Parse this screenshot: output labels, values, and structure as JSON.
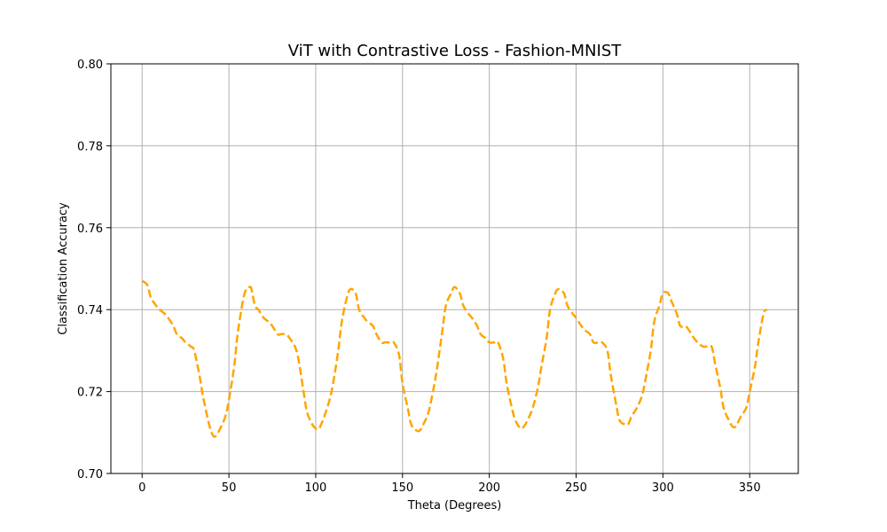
{
  "chart_data": {
    "type": "line",
    "title": "ViT with Contrastive Loss - Fashion-MNIST",
    "xlabel": "Theta (Degrees)",
    "ylabel": "Classification Accuracy",
    "xlim": [
      -18,
      378
    ],
    "ylim": [
      0.7,
      0.8
    ],
    "xticks": [
      0,
      50,
      100,
      150,
      200,
      250,
      300,
      350
    ],
    "xtick_labels": [
      "0",
      "50",
      "100",
      "150",
      "200",
      "250",
      "300",
      "350"
    ],
    "yticks": [
      0.7,
      0.72,
      0.74,
      0.76,
      0.78,
      0.8
    ],
    "ytick_labels": [
      "0.70",
      "0.72",
      "0.74",
      "0.76",
      "0.78",
      "0.80"
    ],
    "grid": true,
    "series": [
      {
        "color": "#FFA500",
        "linestyle": "dashed",
        "x": [
          0,
          3,
          5,
          8,
          10,
          13,
          15,
          18,
          20,
          23,
          25,
          28,
          30,
          33,
          35,
          38,
          40,
          42,
          45,
          48,
          50,
          53,
          55,
          58,
          60,
          62,
          63,
          65,
          67,
          70,
          73,
          75,
          78,
          80,
          83,
          85,
          88,
          90,
          93,
          95,
          98,
          100,
          102,
          105,
          108,
          110,
          113,
          115,
          118,
          120,
          123,
          125,
          128,
          130,
          133,
          135,
          138,
          140,
          143,
          145,
          148,
          150,
          153,
          155,
          158,
          160,
          162,
          165,
          168,
          170,
          173,
          175,
          178,
          180,
          183,
          185,
          188,
          190,
          193,
          195,
          198,
          200,
          203,
          205,
          208,
          210,
          213,
          215,
          218,
          220,
          222,
          225,
          228,
          230,
          233,
          235,
          238,
          240,
          243,
          245,
          248,
          250,
          253,
          255,
          258,
          260,
          263,
          265,
          268,
          270,
          273,
          275,
          278,
          280,
          282,
          285,
          288,
          290,
          293,
          295,
          298,
          300,
          303,
          305,
          308,
          310,
          313,
          315,
          318,
          320,
          323,
          325,
          328,
          330,
          333,
          335,
          338,
          340,
          342,
          345,
          348,
          350,
          353,
          355,
          358,
          360
        ],
        "y": [
          0.747,
          0.746,
          0.743,
          0.741,
          0.74,
          0.739,
          0.738,
          0.736,
          0.734,
          0.733,
          0.732,
          0.731,
          0.73,
          0.724,
          0.719,
          0.713,
          0.71,
          0.709,
          0.711,
          0.714,
          0.718,
          0.726,
          0.734,
          0.742,
          0.745,
          0.7455,
          0.745,
          0.741,
          0.74,
          0.738,
          0.737,
          0.736,
          0.734,
          0.734,
          0.734,
          0.733,
          0.731,
          0.728,
          0.72,
          0.715,
          0.712,
          0.711,
          0.711,
          0.714,
          0.718,
          0.722,
          0.73,
          0.737,
          0.743,
          0.745,
          0.744,
          0.74,
          0.738,
          0.737,
          0.736,
          0.734,
          0.732,
          0.732,
          0.732,
          0.732,
          0.729,
          0.722,
          0.716,
          0.712,
          0.7105,
          0.7105,
          0.712,
          0.715,
          0.721,
          0.726,
          0.735,
          0.741,
          0.744,
          0.7455,
          0.744,
          0.741,
          0.739,
          0.738,
          0.736,
          0.734,
          0.733,
          0.732,
          0.732,
          0.732,
          0.728,
          0.722,
          0.716,
          0.713,
          0.711,
          0.7115,
          0.713,
          0.716,
          0.721,
          0.726,
          0.733,
          0.74,
          0.744,
          0.745,
          0.744,
          0.741,
          0.739,
          0.738,
          0.736,
          0.735,
          0.734,
          0.732,
          0.732,
          0.732,
          0.73,
          0.724,
          0.717,
          0.713,
          0.712,
          0.712,
          0.714,
          0.716,
          0.719,
          0.723,
          0.73,
          0.737,
          0.741,
          0.744,
          0.744,
          0.742,
          0.739,
          0.736,
          0.736,
          0.735,
          0.733,
          0.732,
          0.731,
          0.731,
          0.731,
          0.727,
          0.721,
          0.716,
          0.713,
          0.7115,
          0.7115,
          0.714,
          0.716,
          0.72,
          0.726,
          0.732,
          0.739,
          0.74
        ]
      }
    ]
  }
}
